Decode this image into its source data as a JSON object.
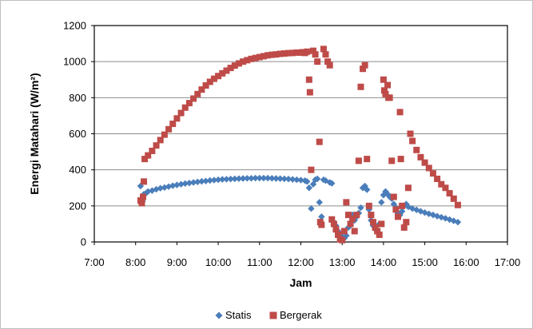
{
  "chart_data": {
    "type": "scatter",
    "title": "",
    "xlabel": "Jam",
    "ylabel": "Energi Matahari (W/m²)",
    "xlim": [
      7,
      17
    ],
    "ylim": [
      0,
      1200
    ],
    "x_ticks": [
      "7:00",
      "8:00",
      "9:00",
      "10:00",
      "11:00",
      "12:00",
      "13:00",
      "14:00",
      "15:00",
      "16:00",
      "17:00"
    ],
    "y_ticks": [
      "0",
      "200",
      "400",
      "600",
      "800",
      "1000",
      "1200"
    ],
    "grid": "horizontal",
    "legend_position": "bottom",
    "series": [
      {
        "name": "Statis",
        "color": "#4a7ebb",
        "marker": "diamond",
        "points": [
          [
            8.12,
            310
          ],
          [
            8.17,
            225
          ],
          [
            8.2,
            265
          ],
          [
            8.25,
            270
          ],
          [
            8.3,
            280
          ],
          [
            8.4,
            285
          ],
          [
            8.5,
            292
          ],
          [
            8.6,
            298
          ],
          [
            8.7,
            302
          ],
          [
            8.8,
            307
          ],
          [
            8.9,
            312
          ],
          [
            9.0,
            316
          ],
          [
            9.1,
            320
          ],
          [
            9.2,
            324
          ],
          [
            9.3,
            327
          ],
          [
            9.4,
            330
          ],
          [
            9.5,
            333
          ],
          [
            9.6,
            336
          ],
          [
            9.7,
            338
          ],
          [
            9.8,
            341
          ],
          [
            9.9,
            343
          ],
          [
            10.0,
            345
          ],
          [
            10.1,
            347
          ],
          [
            10.2,
            348
          ],
          [
            10.3,
            349
          ],
          [
            10.4,
            350
          ],
          [
            10.5,
            351
          ],
          [
            10.6,
            352
          ],
          [
            10.7,
            353
          ],
          [
            10.8,
            353
          ],
          [
            10.9,
            354
          ],
          [
            11.0,
            354
          ],
          [
            11.1,
            354
          ],
          [
            11.2,
            354
          ],
          [
            11.3,
            353
          ],
          [
            11.4,
            352
          ],
          [
            11.5,
            351
          ],
          [
            11.6,
            350
          ],
          [
            11.7,
            349
          ],
          [
            11.8,
            347
          ],
          [
            11.9,
            345
          ],
          [
            12.0,
            343
          ],
          [
            12.1,
            340
          ],
          [
            12.15,
            335
          ],
          [
            12.2,
            300
          ],
          [
            12.25,
            185
          ],
          [
            12.3,
            320
          ],
          [
            12.35,
            345
          ],
          [
            12.4,
            350
          ],
          [
            12.45,
            220
          ],
          [
            12.5,
            140
          ],
          [
            12.55,
            345
          ],
          [
            12.6,
            340
          ],
          [
            12.7,
            330
          ],
          [
            12.75,
            325
          ],
          [
            12.8,
            110
          ],
          [
            12.85,
            90
          ],
          [
            12.9,
            60
          ],
          [
            12.95,
            40
          ],
          [
            13.0,
            30
          ],
          [
            13.05,
            20
          ],
          [
            13.1,
            35
          ],
          [
            13.15,
            80
          ],
          [
            13.2,
            100
          ],
          [
            13.25,
            150
          ],
          [
            13.3,
            120
          ],
          [
            13.35,
            140
          ],
          [
            13.4,
            160
          ],
          [
            13.45,
            190
          ],
          [
            13.5,
            300
          ],
          [
            13.55,
            310
          ],
          [
            13.6,
            290
          ],
          [
            13.65,
            180
          ],
          [
            13.7,
            120
          ],
          [
            13.75,
            90
          ],
          [
            13.8,
            70
          ],
          [
            13.85,
            60
          ],
          [
            13.9,
            100
          ],
          [
            13.95,
            220
          ],
          [
            14.0,
            260
          ],
          [
            14.05,
            280
          ],
          [
            14.1,
            265
          ],
          [
            14.15,
            250
          ],
          [
            14.2,
            240
          ],
          [
            14.25,
            210
          ],
          [
            14.3,
            190
          ],
          [
            14.35,
            160
          ],
          [
            14.4,
            150
          ],
          [
            14.45,
            170
          ],
          [
            14.5,
            200
          ],
          [
            14.55,
            210
          ],
          [
            14.6,
            195
          ],
          [
            14.7,
            185
          ],
          [
            14.8,
            178
          ],
          [
            14.9,
            170
          ],
          [
            15.0,
            163
          ],
          [
            15.1,
            156
          ],
          [
            15.2,
            150
          ],
          [
            15.3,
            143
          ],
          [
            15.4,
            137
          ],
          [
            15.5,
            131
          ],
          [
            15.6,
            124
          ],
          [
            15.7,
            117
          ],
          [
            15.8,
            110
          ]
        ]
      },
      {
        "name": "Bergerak",
        "color": "#be4b48",
        "marker": "square",
        "points": [
          [
            8.12,
            230
          ],
          [
            8.15,
            215
          ],
          [
            8.18,
            250
          ],
          [
            8.2,
            335
          ],
          [
            8.22,
            460
          ],
          [
            8.3,
            480
          ],
          [
            8.4,
            505
          ],
          [
            8.5,
            535
          ],
          [
            8.6,
            565
          ],
          [
            8.7,
            595
          ],
          [
            8.8,
            625
          ],
          [
            8.9,
            655
          ],
          [
            9.0,
            685
          ],
          [
            9.1,
            715
          ],
          [
            9.2,
            745
          ],
          [
            9.3,
            770
          ],
          [
            9.4,
            795
          ],
          [
            9.5,
            820
          ],
          [
            9.6,
            845
          ],
          [
            9.7,
            868
          ],
          [
            9.8,
            888
          ],
          [
            9.9,
            905
          ],
          [
            10.0,
            920
          ],
          [
            10.1,
            935
          ],
          [
            10.2,
            950
          ],
          [
            10.3,
            965
          ],
          [
            10.4,
            978
          ],
          [
            10.5,
            990
          ],
          [
            10.6,
            1000
          ],
          [
            10.7,
            1008
          ],
          [
            10.8,
            1015
          ],
          [
            10.9,
            1020
          ],
          [
            11.0,
            1025
          ],
          [
            11.1,
            1030
          ],
          [
            11.2,
            1035
          ],
          [
            11.3,
            1038
          ],
          [
            11.4,
            1040
          ],
          [
            11.5,
            1043
          ],
          [
            11.6,
            1045
          ],
          [
            11.7,
            1047
          ],
          [
            11.8,
            1048
          ],
          [
            11.9,
            1050
          ],
          [
            12.0,
            1050
          ],
          [
            12.05,
            1052
          ],
          [
            12.1,
            1048
          ],
          [
            12.15,
            1055
          ],
          [
            12.2,
            900
          ],
          [
            12.22,
            830
          ],
          [
            12.25,
            400
          ],
          [
            12.3,
            1060
          ],
          [
            12.35,
            1040
          ],
          [
            12.4,
            1000
          ],
          [
            12.45,
            555
          ],
          [
            12.47,
            110
          ],
          [
            12.5,
            95
          ],
          [
            12.55,
            1070
          ],
          [
            12.6,
            1040
          ],
          [
            12.65,
            1000
          ],
          [
            12.7,
            980
          ],
          [
            12.75,
            125
          ],
          [
            12.8,
            100
          ],
          [
            12.85,
            70
          ],
          [
            12.9,
            40
          ],
          [
            12.95,
            15
          ],
          [
            13.0,
            10
          ],
          [
            13.05,
            60
          ],
          [
            13.1,
            220
          ],
          [
            13.15,
            150
          ],
          [
            13.2,
            100
          ],
          [
            13.25,
            130
          ],
          [
            13.3,
            60
          ],
          [
            13.35,
            150
          ],
          [
            13.4,
            450
          ],
          [
            13.45,
            860
          ],
          [
            13.5,
            960
          ],
          [
            13.55,
            980
          ],
          [
            13.6,
            460
          ],
          [
            13.65,
            200
          ],
          [
            13.7,
            150
          ],
          [
            13.75,
            110
          ],
          [
            13.8,
            80
          ],
          [
            13.85,
            60
          ],
          [
            13.9,
            40
          ],
          [
            13.95,
            100
          ],
          [
            14.0,
            900
          ],
          [
            14.02,
            840
          ],
          [
            14.05,
            820
          ],
          [
            14.1,
            870
          ],
          [
            14.12,
            800
          ],
          [
            14.15,
            800
          ],
          [
            14.2,
            450
          ],
          [
            14.25,
            250
          ],
          [
            14.3,
            180
          ],
          [
            14.35,
            140
          ],
          [
            14.4,
            720
          ],
          [
            14.42,
            460
          ],
          [
            14.45,
            200
          ],
          [
            14.5,
            80
          ],
          [
            14.55,
            110
          ],
          [
            14.6,
            300
          ],
          [
            14.65,
            600
          ],
          [
            14.7,
            560
          ],
          [
            14.8,
            510
          ],
          [
            14.9,
            470
          ],
          [
            15.0,
            440
          ],
          [
            15.1,
            410
          ],
          [
            15.2,
            380
          ],
          [
            15.3,
            350
          ],
          [
            15.4,
            320
          ],
          [
            15.5,
            300
          ],
          [
            15.6,
            270
          ],
          [
            15.7,
            240
          ],
          [
            15.8,
            205
          ]
        ]
      }
    ]
  }
}
